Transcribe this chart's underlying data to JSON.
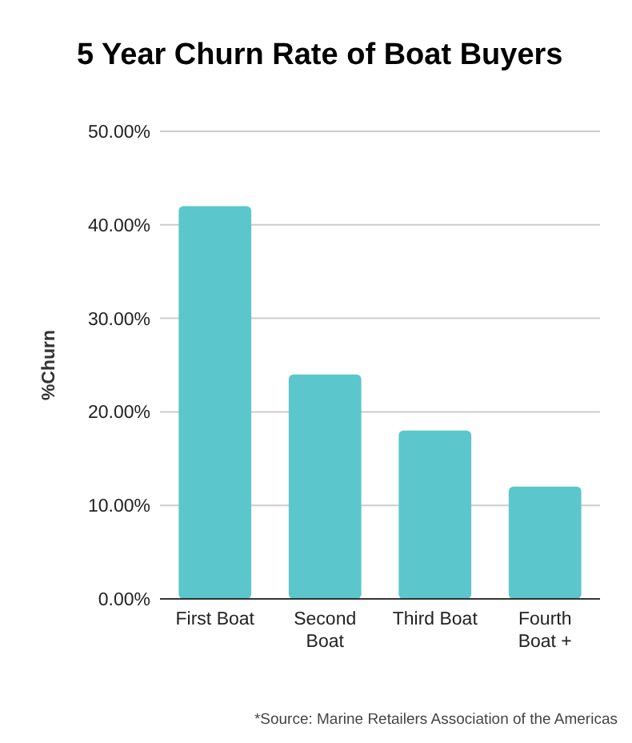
{
  "chart_data": {
    "type": "bar",
    "title": "5 Year Churn Rate of Boat Buyers",
    "ylabel": "%Churn",
    "categories": [
      "First Boat",
      "Second Boat",
      "Third Boat",
      "Fourth Boat +"
    ],
    "values": [
      42,
      24,
      18,
      12
    ],
    "color": "#5bc6cc",
    "ylim": [
      0,
      50
    ],
    "yticks": [
      {
        "value": 0,
        "label": "0.00%"
      },
      {
        "value": 10,
        "label": "10.00%"
      },
      {
        "value": 20,
        "label": "20.00%"
      },
      {
        "value": 30,
        "label": "30.00%"
      },
      {
        "value": 40,
        "label": "40.00%"
      },
      {
        "value": 50,
        "label": "50.00%"
      }
    ],
    "grid": "y",
    "annotations": [
      "*Source: Marine Retailers Association of the Americas"
    ]
  }
}
